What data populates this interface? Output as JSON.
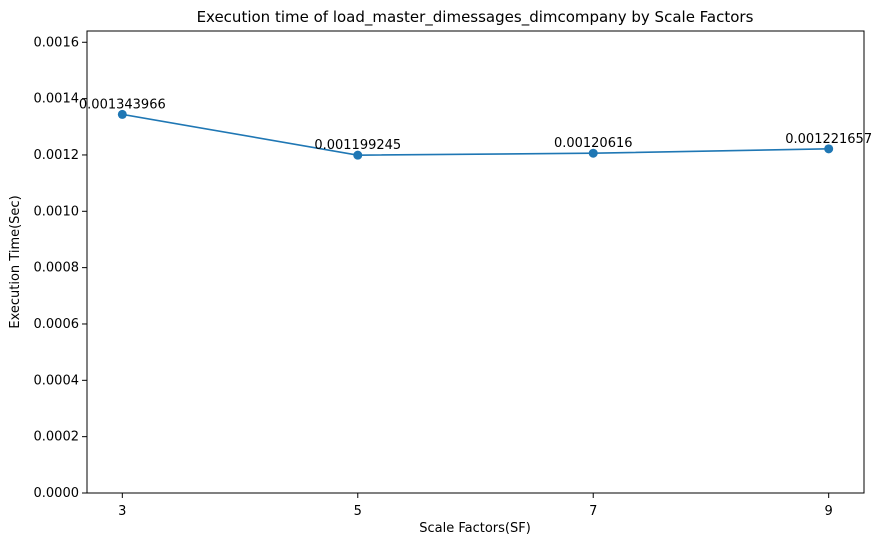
{
  "chart_data": {
    "type": "line",
    "title": "Execution time of load_master_dimessages_dimcompany by Scale Factors",
    "xlabel": "Scale Factors(SF)",
    "ylabel": "Execution Time(Sec)",
    "x": [
      3,
      5,
      7,
      9
    ],
    "x_tick_labels": [
      "3",
      "5",
      "7",
      "9"
    ],
    "series": [
      {
        "values": [
          0.001343966,
          0.001199245,
          0.00120616,
          0.001221657
        ],
        "point_labels": [
          "0.001343966",
          "0.001199245",
          "0.00120616",
          "0.001221657"
        ],
        "color": "#1f77b4"
      }
    ],
    "ylim": [
      0,
      0.00164
    ],
    "y_ticks": [
      0,
      0.0002,
      0.0004,
      0.0006,
      0.0008,
      0.001,
      0.0012,
      0.0014,
      0.0016
    ],
    "y_tick_labels": [
      "0.0000",
      "0.0002",
      "0.0004",
      "0.0006",
      "0.0008",
      "0.0010",
      "0.0012",
      "0.0014",
      "0.0016"
    ],
    "grid": false,
    "legend": "none"
  }
}
